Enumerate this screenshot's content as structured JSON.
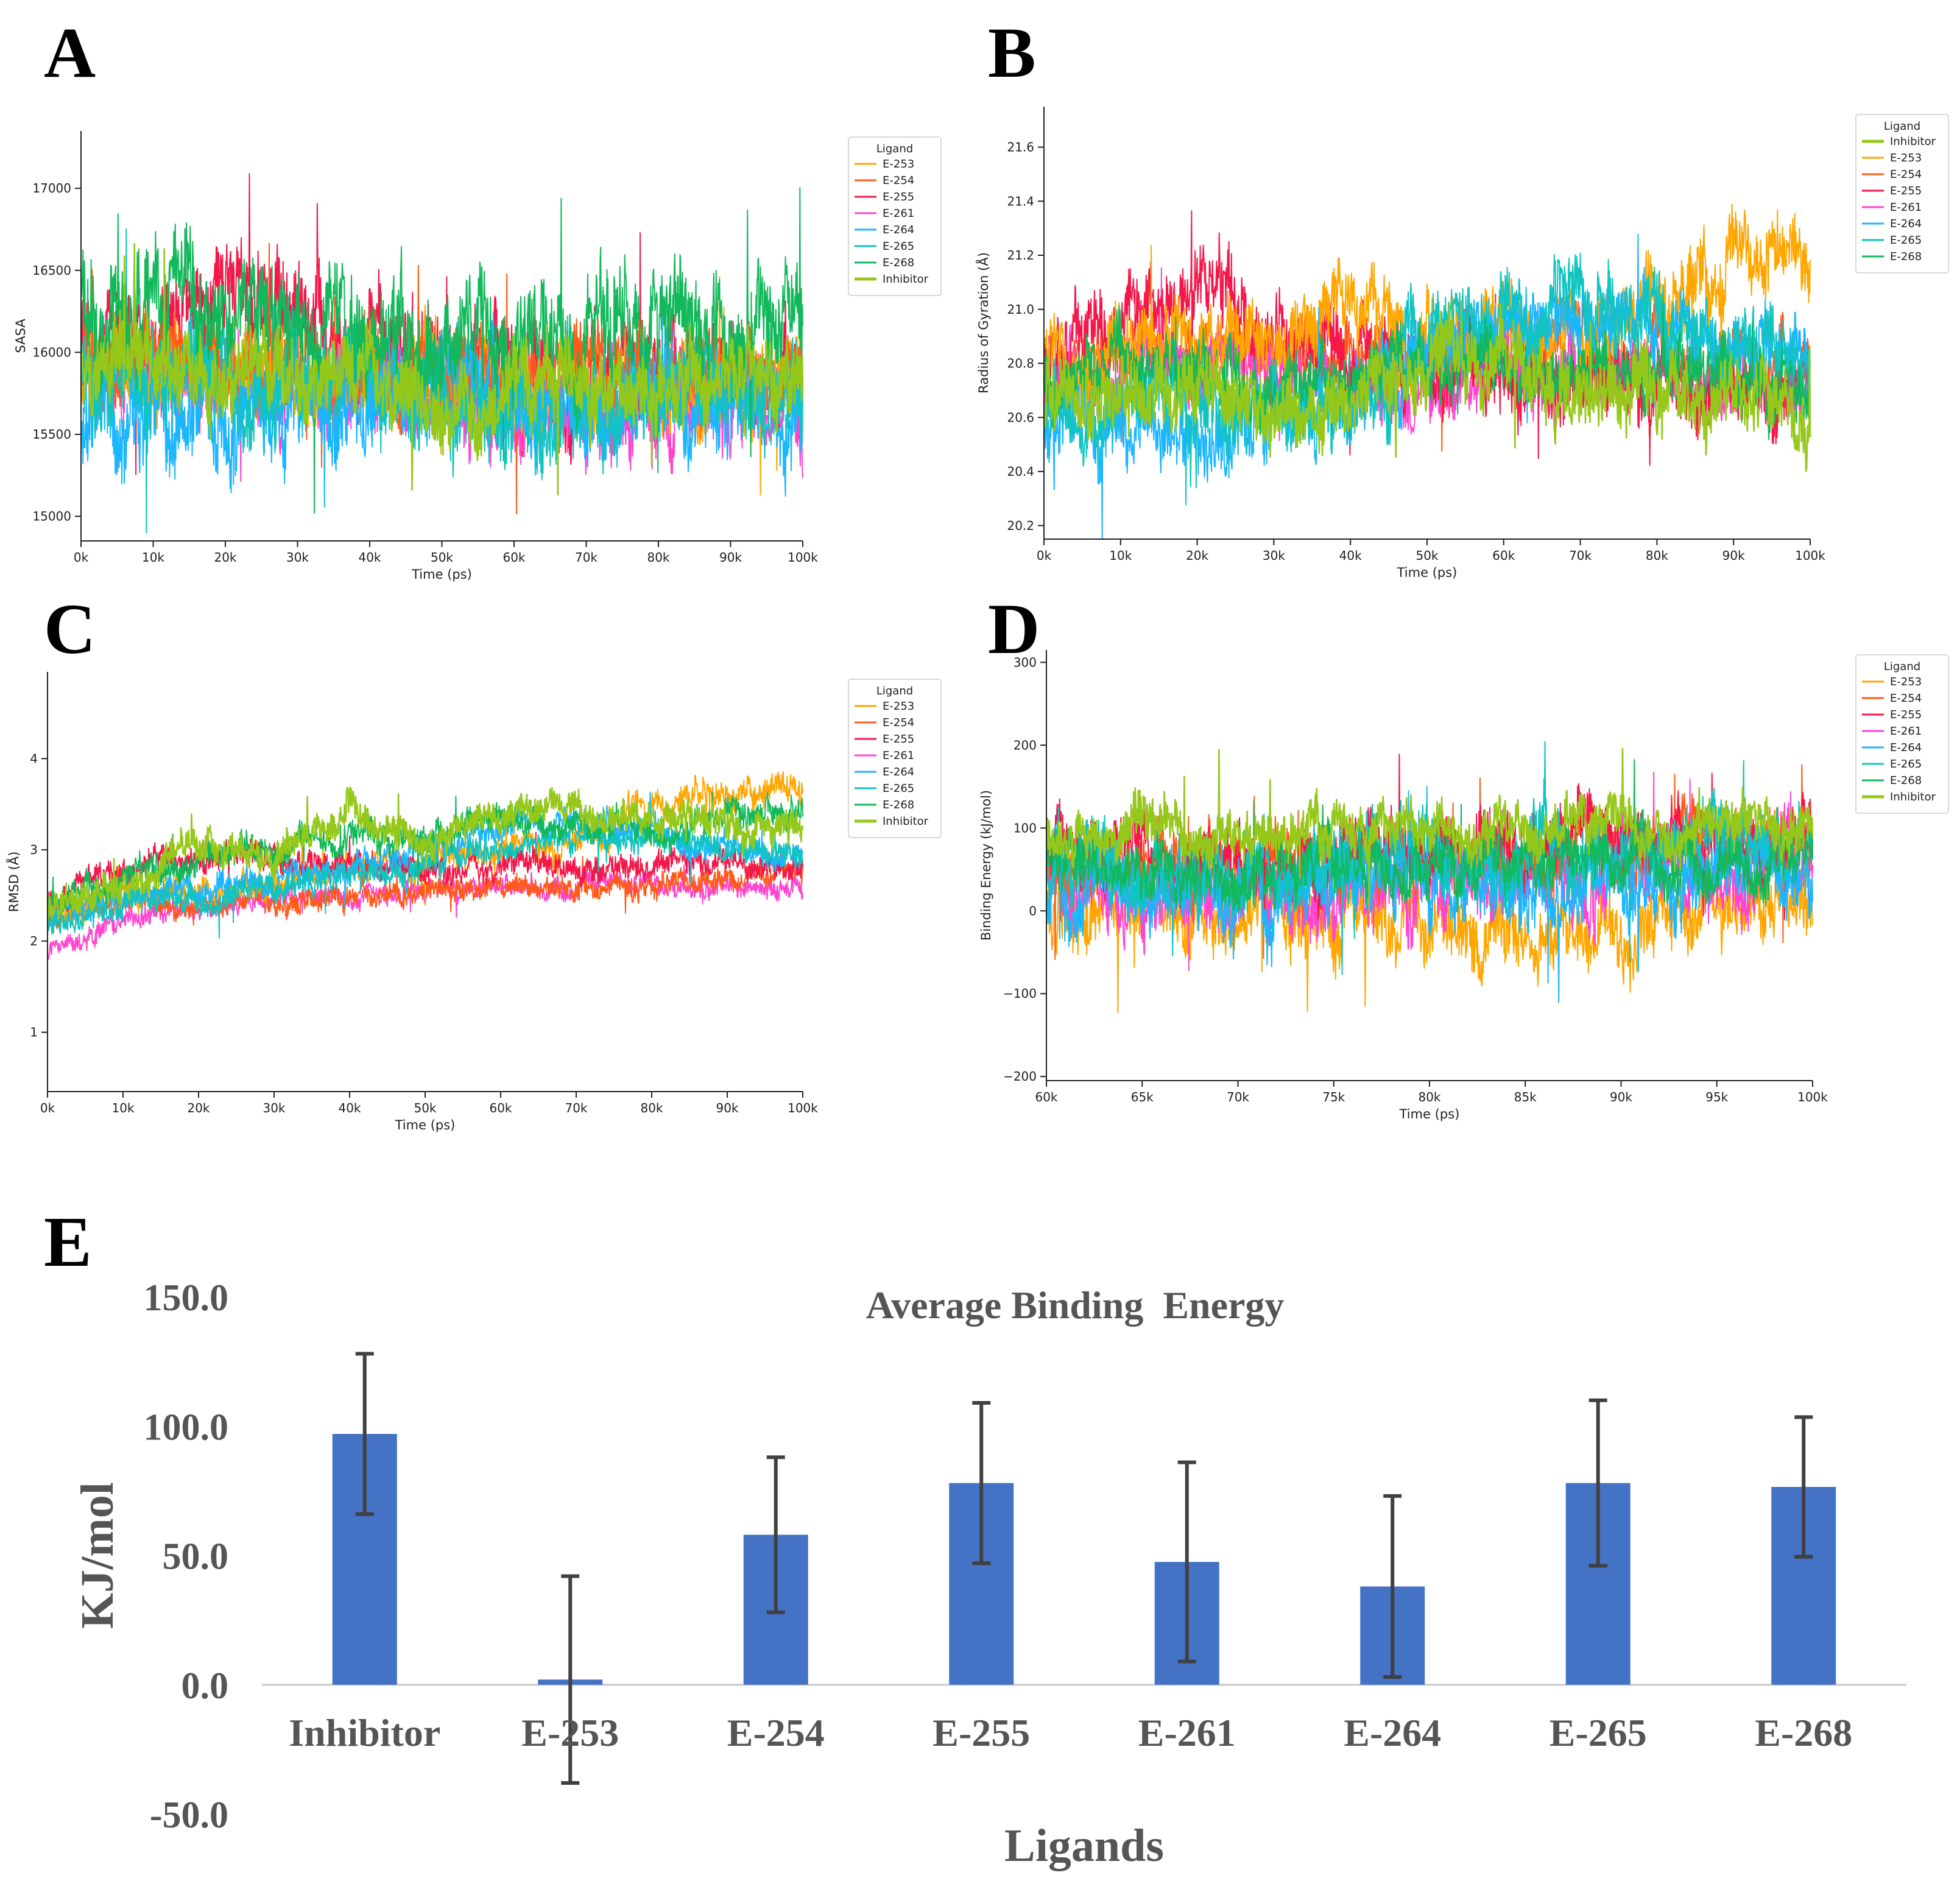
{
  "colors": {
    "E-253": "#ffa600",
    "E-254": "#ff5a18",
    "E-255": "#f4184a",
    "E-261": "#ff44d0",
    "E-264": "#1cb6ff",
    "E-265": "#11c4bf",
    "E-268": "#12b85a",
    "Inhibitor": "#95c81a",
    "bar": "#4472c4",
    "errorbar": "#404040"
  },
  "panels": {
    "A": "A",
    "B": "B",
    "C": "C",
    "D": "D",
    "E": "E"
  },
  "chart_data": [
    {
      "id": "A",
      "type": "line",
      "xlabel": "Time (ps)",
      "ylabel": "SASA",
      "xlim": [
        0,
        100000
      ],
      "ylim": [
        14850,
        17350
      ],
      "xticks": [
        "0k",
        "10k",
        "20k",
        "30k",
        "40k",
        "50k",
        "60k",
        "70k",
        "80k",
        "90k",
        "100k"
      ],
      "yticks": [
        "15000",
        "15500",
        "16000",
        "16500",
        "17000"
      ],
      "legend_title": "Ligand",
      "legend": [
        "E-253",
        "E-254",
        "E-255",
        "E-261",
        "E-264",
        "E-265",
        "E-268",
        "Inhibitor"
      ],
      "series": [
        {
          "name": "E-255",
          "mean": [
            16050,
            16150,
            16350,
            16250,
            16000,
            15950,
            15900,
            15850,
            15800,
            15800,
            15850
          ],
          "amp": 300
        },
        {
          "name": "E-261",
          "mean": [
            15900,
            15850,
            15850,
            15800,
            15800,
            15750,
            15700,
            15650,
            15700,
            15700,
            15700
          ],
          "amp": 260
        },
        {
          "name": "E-253",
          "mean": [
            15950,
            15900,
            15900,
            15850,
            15850,
            15800,
            15850,
            15800,
            15850,
            15800,
            15800
          ],
          "amp": 250
        },
        {
          "name": "E-254",
          "mean": [
            15950,
            15950,
            15900,
            15900,
            15850,
            15850,
            15850,
            15800,
            15850,
            15850,
            15800
          ],
          "amp": 250
        },
        {
          "name": "E-264",
          "mean": [
            15650,
            15650,
            15650,
            15700,
            15750,
            15750,
            15700,
            15700,
            15750,
            15700,
            15750
          ],
          "amp": 300
        },
        {
          "name": "E-265",
          "mean": [
            15800,
            15850,
            15850,
            15800,
            15750,
            15700,
            15650,
            15650,
            15750,
            15800,
            15800
          ],
          "amp": 300
        },
        {
          "name": "E-268",
          "mean": [
            16200,
            16250,
            16200,
            16250,
            16150,
            16100,
            16150,
            16050,
            16050,
            16100,
            16250
          ],
          "amp": 320
        },
        {
          "name": "Inhibitor",
          "mean": [
            15950,
            15950,
            15950,
            15900,
            15850,
            15700,
            15800,
            15800,
            15850,
            15850,
            15800
          ],
          "amp": 230
        }
      ]
    },
    {
      "id": "B",
      "type": "line",
      "xlabel": "Time (ps)",
      "ylabel": "Radius of Gyration (Å)",
      "xlim": [
        0,
        100000
      ],
      "ylim": [
        20.15,
        21.75
      ],
      "xticks": [
        "0k",
        "10k",
        "20k",
        "30k",
        "40k",
        "50k",
        "60k",
        "70k",
        "80k",
        "90k",
        "100k"
      ],
      "yticks": [
        "20.2",
        "20.4",
        "20.6",
        "20.8",
        "21.0",
        "21.2",
        "21.4",
        "21.6"
      ],
      "legend_title": "Ligand",
      "legend": [
        "Inhibitor",
        "E-253",
        "E-254",
        "E-255",
        "E-261",
        "E-264",
        "E-265",
        "E-268"
      ],
      "series": [
        {
          "name": "E-254",
          "mean": [
            20.75,
            20.8,
            20.85,
            20.8,
            20.8,
            20.8,
            20.85,
            20.85,
            20.85,
            20.8,
            20.8
          ],
          "amp": 0.12
        },
        {
          "name": "E-261",
          "mean": [
            20.7,
            20.75,
            20.8,
            20.75,
            20.7,
            20.75,
            20.8,
            20.75,
            20.75,
            20.75,
            20.7
          ],
          "amp": 0.12
        },
        {
          "name": "E-255",
          "mean": [
            20.85,
            21.0,
            21.05,
            20.95,
            20.85,
            20.8,
            20.8,
            20.75,
            20.75,
            20.7,
            20.7
          ],
          "amp": 0.15
        },
        {
          "name": "E-253",
          "mean": [
            20.8,
            20.85,
            20.9,
            20.85,
            21.05,
            20.9,
            20.95,
            20.9,
            21.05,
            21.2,
            21.2
          ],
          "amp": 0.14
        },
        {
          "name": "E-264",
          "mean": [
            20.55,
            20.6,
            20.6,
            20.6,
            20.6,
            20.85,
            20.95,
            21.0,
            20.9,
            20.85,
            20.85
          ],
          "amp": 0.13
        },
        {
          "name": "E-265",
          "mean": [
            20.6,
            20.65,
            20.7,
            20.65,
            20.6,
            20.9,
            21.0,
            21.05,
            20.95,
            20.85,
            20.8
          ],
          "amp": 0.14
        },
        {
          "name": "E-268",
          "mean": [
            20.75,
            20.8,
            20.8,
            20.75,
            20.75,
            20.8,
            20.8,
            20.75,
            20.8,
            20.75,
            20.7
          ],
          "amp": 0.12
        },
        {
          "name": "Inhibitor",
          "mean": [
            20.7,
            20.7,
            20.7,
            20.65,
            20.65,
            20.75,
            20.85,
            20.65,
            20.7,
            20.65,
            20.6
          ],
          "amp": 0.13
        }
      ]
    },
    {
      "id": "C",
      "type": "line",
      "xlabel": "Time (ps)",
      "ylabel": "RMSD (Å)",
      "xlim": [
        0,
        100000
      ],
      "ylim": [
        0.35,
        4.95
      ],
      "xticks": [
        "0k",
        "10k",
        "20k",
        "30k",
        "40k",
        "50k",
        "60k",
        "70k",
        "80k",
        "90k",
        "100k"
      ],
      "yticks": [
        "1",
        "2",
        "3",
        "4"
      ],
      "legend_title": "Ligand",
      "legend": [
        "E-253",
        "E-254",
        "E-255",
        "E-261",
        "E-264",
        "E-265",
        "E-268",
        "Inhibitor"
      ],
      "series": [
        {
          "name": "E-261",
          "mean": [
            1.9,
            2.2,
            2.35,
            2.45,
            2.5,
            2.55,
            2.6,
            2.6,
            2.6,
            2.6,
            2.6
          ],
          "amp": 0.12
        },
        {
          "name": "E-254",
          "mean": [
            2.2,
            2.45,
            2.4,
            2.4,
            2.5,
            2.55,
            2.6,
            2.55,
            2.6,
            2.7,
            2.75
          ],
          "amp": 0.13
        },
        {
          "name": "E-253",
          "mean": [
            2.3,
            2.5,
            2.6,
            2.6,
            2.8,
            2.9,
            3.0,
            3.1,
            3.4,
            3.6,
            3.7
          ],
          "amp": 0.17
        },
        {
          "name": "E-255",
          "mean": [
            2.4,
            2.8,
            2.9,
            2.9,
            2.9,
            2.8,
            2.8,
            2.8,
            2.8,
            2.8,
            2.8
          ],
          "amp": 0.15
        },
        {
          "name": "E-264",
          "mean": [
            2.3,
            2.5,
            2.6,
            2.7,
            2.8,
            3.0,
            3.2,
            3.3,
            3.2,
            3.0,
            2.9
          ],
          "amp": 0.15
        },
        {
          "name": "E-265",
          "mean": [
            2.2,
            2.4,
            2.5,
            2.6,
            2.7,
            2.8,
            3.0,
            3.2,
            3.1,
            3.0,
            3.0
          ],
          "amp": 0.15
        },
        {
          "name": "E-268",
          "mean": [
            2.4,
            2.7,
            2.9,
            3.0,
            3.1,
            3.2,
            3.3,
            3.3,
            3.2,
            3.3,
            3.5
          ],
          "amp": 0.16
        },
        {
          "name": "Inhibitor",
          "mean": [
            2.4,
            2.7,
            3.0,
            3.0,
            3.4,
            3.1,
            3.4,
            3.4,
            3.3,
            3.2,
            3.2
          ],
          "amp": 0.18
        }
      ]
    },
    {
      "id": "D",
      "type": "line",
      "xlabel": "Time (ps)",
      "ylabel": "Binding Energy (kJ/mol)",
      "xlim": [
        60000,
        100000
      ],
      "ylim": [
        -205,
        315
      ],
      "xticks": [
        "60k",
        "65k",
        "70k",
        "75k",
        "80k",
        "85k",
        "90k",
        "95k",
        "100k"
      ],
      "yticks": [
        "−200",
        "−100",
        "0",
        "100",
        "200",
        "300"
      ],
      "legend_title": "Ligand",
      "legend": [
        "E-253",
        "E-254",
        "E-255",
        "E-261",
        "E-264",
        "E-265",
        "E-268",
        "Inhibitor"
      ],
      "series": [
        {
          "name": "E-253",
          "mean": [
            0,
            10,
            5,
            -10,
            0,
            -40,
            -30,
            -10,
            0
          ],
          "amp": 45
        },
        {
          "name": "E-261",
          "mean": [
            30,
            10,
            0,
            20,
            30,
            40,
            50,
            50,
            40
          ],
          "amp": 45
        },
        {
          "name": "E-254",
          "mean": [
            60,
            60,
            50,
            60,
            60,
            60,
            70,
            80,
            80
          ],
          "amp": 40
        },
        {
          "name": "E-255",
          "mean": [
            70,
            70,
            60,
            70,
            70,
            80,
            90,
            80,
            80
          ],
          "amp": 40
        },
        {
          "name": "E-264",
          "mean": [
            30,
            30,
            20,
            30,
            40,
            30,
            40,
            40,
            40
          ],
          "amp": 45
        },
        {
          "name": "E-265",
          "mean": [
            50,
            50,
            40,
            60,
            60,
            50,
            70,
            80,
            70
          ],
          "amp": 45
        },
        {
          "name": "E-268",
          "mean": [
            60,
            50,
            50,
            60,
            60,
            50,
            60,
            60,
            60
          ],
          "amp": 35
        },
        {
          "name": "Inhibitor",
          "mean": [
            90,
            95,
            95,
            95,
            100,
            100,
            100,
            100,
            100
          ],
          "amp": 30
        }
      ]
    },
    {
      "id": "E",
      "type": "bar",
      "title": "Average Binding  Energy",
      "xlabel": "Ligands",
      "ylabel": "KJ/mol",
      "ylim": [
        -50,
        150
      ],
      "yticks": [
        "150.0",
        "100.0",
        "50.0",
        "0.0",
        "-50.0"
      ],
      "categories": [
        "Inhibitor",
        "E-253",
        "E-254",
        "E-255",
        "E-261",
        "E-264",
        "E-265",
        "E-268"
      ],
      "values": [
        97,
        2,
        58,
        78,
        47.5,
        38,
        78,
        76.5
      ],
      "errors": [
        31,
        40,
        30,
        31,
        38.5,
        35,
        32,
        27
      ]
    }
  ]
}
